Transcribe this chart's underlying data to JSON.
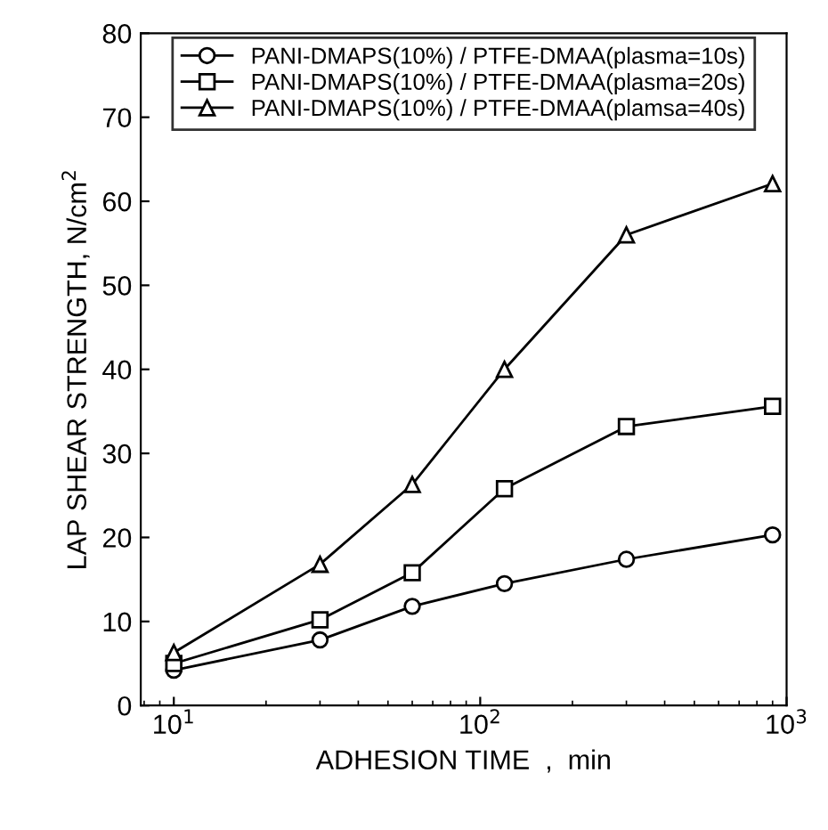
{
  "chart_data": {
    "type": "line",
    "xlabel": "ADHESION TIME  ,  min",
    "ylabel": "LAP SHEAR STRENGTH, N/cm$^{2}$",
    "log": "x",
    "xlim": [
      7.8,
      1000
    ],
    "xticks": [
      {
        "value": 10,
        "label": "10$^{1}$"
      },
      {
        "value": 100,
        "label": "10$^{2}$"
      },
      {
        "value": 1000,
        "label": "10$^{3}$"
      }
    ],
    "ylim": [
      0,
      80
    ],
    "yticks": [
      0,
      10,
      20,
      30,
      40,
      50,
      60,
      70,
      80
    ],
    "grid": false,
    "legend": "top",
    "line_style": "solid",
    "x": [
      10,
      30,
      60,
      120,
      300,
      900
    ],
    "series": [
      {
        "name": "PANI-DMAPS(10%) / PTFE-DMAA(plasma=10s)",
        "color": "#000000",
        "marker": "circle",
        "values": [
          4.2,
          7.8,
          11.8,
          14.5,
          17.4,
          20.3
        ]
      },
      {
        "name": "PANI-DMAPS(10%) / PTFE-DMAA(plasma=20s)",
        "color": "#000000",
        "marker": "square",
        "values": [
          5.0,
          10.2,
          15.8,
          25.8,
          33.2,
          35.6
        ]
      },
      {
        "name": "PANI-DMAPS(10%) / PTFE-DMAA(plamsa=40s)",
        "color": "#000000",
        "marker": "triangle",
        "values": [
          6.3,
          16.8,
          26.3,
          40.0,
          56.0,
          62.1
        ]
      }
    ]
  }
}
